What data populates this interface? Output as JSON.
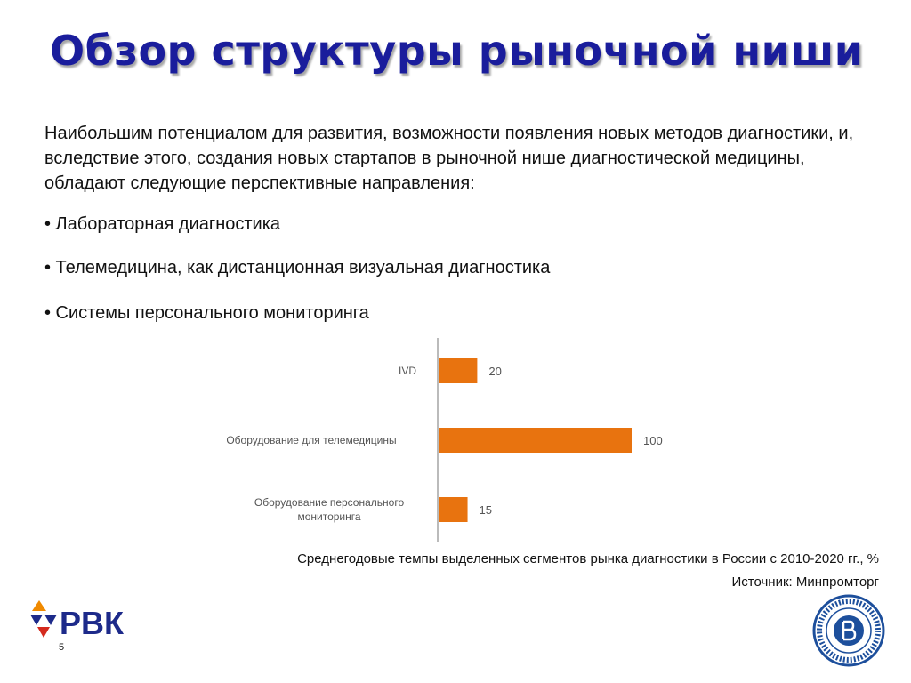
{
  "slide": {
    "title": "Обзор структуры рыночной ниши",
    "intro": "Наибольшим потенциалом для развития, возможности появления новых методов диагностики, и, вследствие этого, создания новых стартапов в рыночной нише диагностической медицины, обладают следующие перспективные направления:",
    "bullets": [
      "• Лабораторная диагностика",
      "• Телемедицина, как дистанционная визуальная диагностика",
      "• Системы персонального мониторинга"
    ],
    "caption": "Среднегодовые темпы выделенных сегментов рынка диагностики в России с 2010-2020 гг., %",
    "source": "Источник: Минпромторг",
    "page_number": "5",
    "logo_text": "РВК"
  },
  "colors": {
    "title": "#1a1d9c",
    "bar": "#e8730f",
    "axis": "#bbbbbb",
    "logo_blue": "#1d2a8a",
    "logo_orange": "#f08a00",
    "logo_red": "#d42a1e",
    "seal_blue": "#1d4f9c"
  },
  "icons": [
    "rvk-logo-icon",
    "hse-seal-icon"
  ],
  "chart_data": {
    "type": "bar",
    "orientation": "horizontal",
    "categories": [
      [
        "IVD"
      ],
      [
        "Оборудование для телемедицины"
      ],
      [
        "Оборудование персонального",
        "мониторинга"
      ]
    ],
    "values": [
      20,
      100,
      15
    ],
    "xlim": [
      0,
      100
    ],
    "grid": false,
    "title": "",
    "xlabel": "",
    "ylabel": ""
  }
}
